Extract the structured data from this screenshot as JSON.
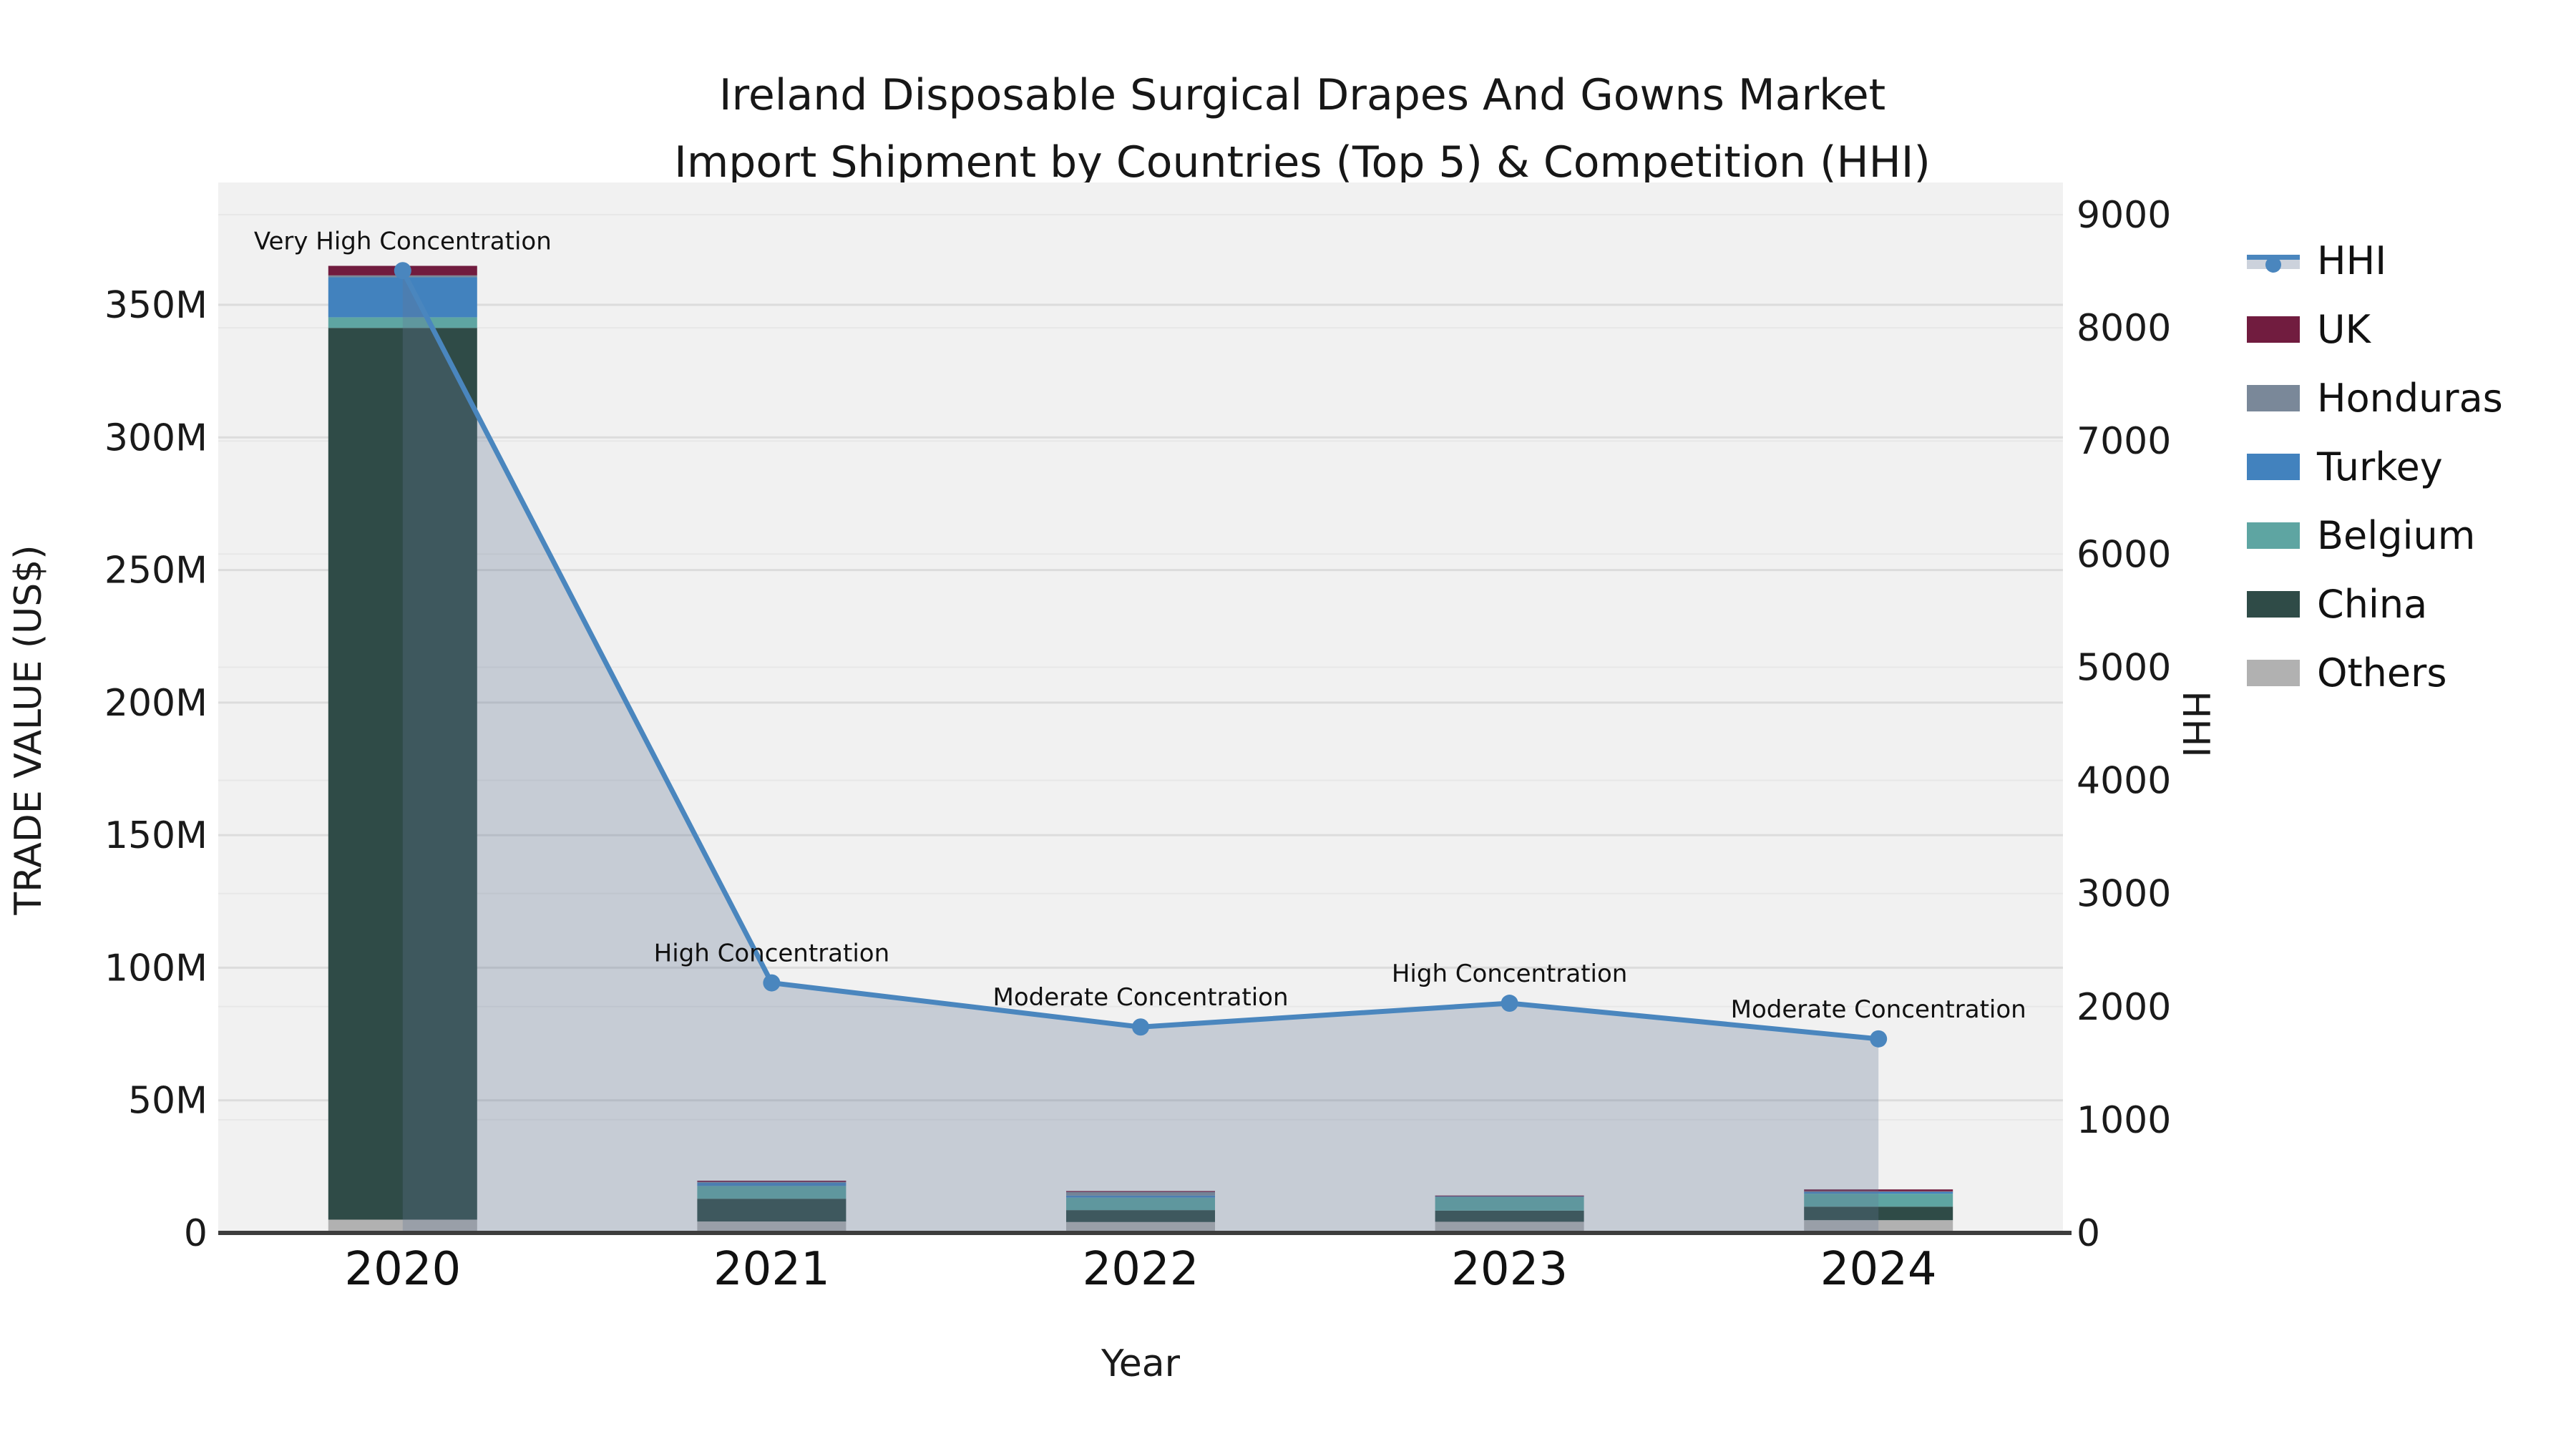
{
  "title": {
    "line1": "Ireland Disposable Surgical Drapes And Gowns Market",
    "line2": "Import Shipment by Countries (Top 5) & Competition (HHI)"
  },
  "axes": {
    "left": {
      "title": "TRADE VALUE (US$)",
      "ticks": [
        "0",
        "50M",
        "100M",
        "150M",
        "200M",
        "250M",
        "300M",
        "350M"
      ]
    },
    "right": {
      "title": "HHI",
      "ticks": [
        "0",
        "1000",
        "2000",
        "3000",
        "4000",
        "5000",
        "6000",
        "7000",
        "8000",
        "9000"
      ]
    },
    "x": {
      "title": "Year",
      "categories": [
        "2020",
        "2021",
        "2022",
        "2023",
        "2024"
      ]
    }
  },
  "legend": [
    {
      "label": "HHI",
      "type": "line",
      "color": "#4a86be"
    },
    {
      "label": "UK",
      "type": "box",
      "color": "#711c3f"
    },
    {
      "label": "Honduras",
      "type": "box",
      "color": "#7a8899"
    },
    {
      "label": "Turkey",
      "type": "box",
      "color": "#4282be"
    },
    {
      "label": "Belgium",
      "type": "box",
      "color": "#5ea5a2"
    },
    {
      "label": "China",
      "type": "box",
      "color": "#2f4b47"
    },
    {
      "label": "Others",
      "type": "box",
      "color": "#b1b1b1"
    }
  ],
  "chart_data": {
    "type": "bar+line",
    "categories": [
      "2020",
      "2021",
      "2022",
      "2023",
      "2024"
    ],
    "bar_value_unit": "million US$",
    "stack_order_note": "series listed bottom-to-top of stack",
    "series": [
      {
        "name": "Others",
        "color": "#b1b1b1",
        "values": [
          5.0,
          4.3,
          4.1,
          4.2,
          4.8
        ]
      },
      {
        "name": "China",
        "color": "#2f4b47",
        "values": [
          336.3,
          8.6,
          4.5,
          4.2,
          5.1
        ]
      },
      {
        "name": "Belgium",
        "color": "#5ea5a2",
        "values": [
          4.0,
          4.8,
          4.7,
          5.1,
          4.9
        ]
      },
      {
        "name": "Turkey",
        "color": "#4282be",
        "values": [
          15.1,
          1.3,
          0.8,
          0.3,
          0.8
        ]
      },
      {
        "name": "Honduras",
        "color": "#7a8899",
        "values": [
          0.7,
          0.2,
          1.3,
          0.1,
          0.1
        ]
      },
      {
        "name": "UK",
        "color": "#711c3f",
        "values": [
          3.6,
          0.5,
          0.4,
          0.2,
          0.7
        ]
      }
    ],
    "line": {
      "name": "HHI",
      "color": "#4a86be",
      "area_fill": "rgba(100,120,150,0.30)",
      "values": [
        8505,
        2210,
        1820,
        2030,
        1715
      ]
    },
    "annotations": [
      "Very High Concentration",
      "High Concentration",
      "Moderate Concentration",
      "High Concentration",
      "Moderate Concentration"
    ],
    "y_left": {
      "label": "TRADE VALUE (US$)",
      "min": 0,
      "max": 350,
      "tick_step": 50,
      "tick_suffix": "M"
    },
    "y_right": {
      "label": "HHI",
      "min": 0,
      "max": 9000,
      "tick_step": 1000
    },
    "xlabel": "Year",
    "grid": true,
    "legend_position": "right",
    "plot_background": "#f1f1f1"
  }
}
